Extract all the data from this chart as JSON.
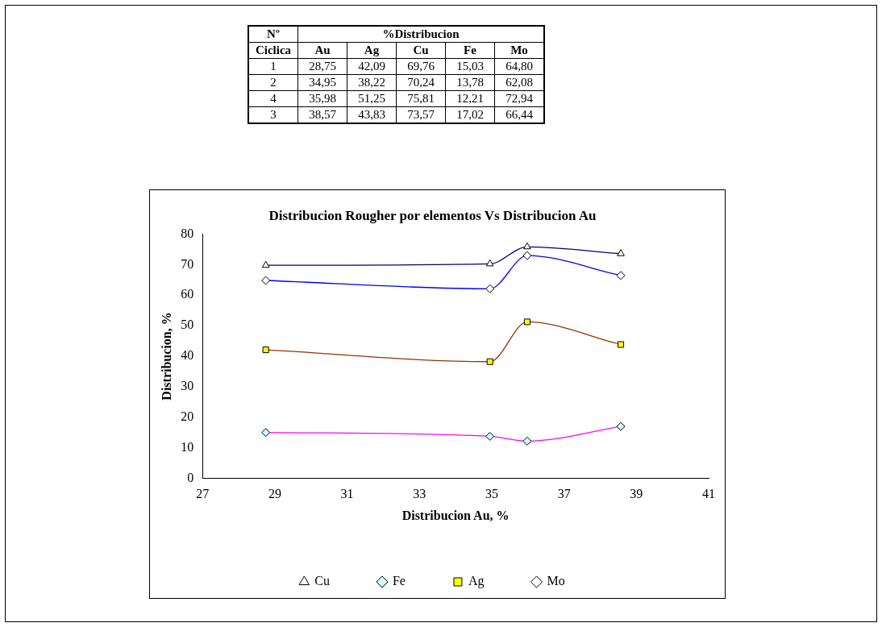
{
  "chart_data": [
    {
      "type": "other",
      "annotations": [
        "Nº",
        "%Distribucion",
        "Ciclica",
        "Au",
        "Ag",
        "Cu",
        "Fe",
        "Mo",
        "1",
        "28,75",
        "42,09",
        "69,76",
        "15,03",
        "64,80",
        "2",
        "34,95",
        "38,22",
        "70,24",
        "13,78",
        "62,08",
        "4",
        "35,98",
        "51,25",
        "75,81",
        "12,21",
        "72,94",
        "3",
        "38,57",
        "43,83",
        "73,57",
        "17,02",
        "66,44"
      ]
    },
    {
      "type": "line",
      "title": "Distribucion Rougher por elementos Vs Distribucion Au",
      "xlabel": "Distribucion Au, %",
      "ylabel": "Distribucion, %",
      "x": [
        28.75,
        34.95,
        35.98,
        38.57
      ],
      "xlim": [
        27,
        41
      ],
      "xticks": [
        27,
        29,
        31,
        33,
        35,
        37,
        39,
        41
      ],
      "ylim": [
        0,
        80
      ],
      "yticks": [
        0,
        10,
        20,
        30,
        40,
        50,
        60,
        70,
        80
      ],
      "grid": false,
      "legend": "bottom",
      "line_style": "solid",
      "series": [
        {
          "name": "Cu",
          "color": "#000080",
          "marker": "triangle",
          "values": [
            69.76,
            70.24,
            75.81,
            73.57
          ]
        },
        {
          "name": "Fe",
          "color": "#ff00ff",
          "marker": "diamond",
          "values": [
            15.03,
            13.78,
            12.21,
            17.02
          ]
        },
        {
          "name": "Ag",
          "color": "#993300",
          "marker": "square",
          "values": [
            42.09,
            38.22,
            51.25,
            43.83
          ]
        },
        {
          "name": "Mo",
          "color": "#0000ff",
          "marker": "diamond",
          "values": [
            64.8,
            62.08,
            72.94,
            66.44
          ]
        }
      ]
    }
  ]
}
